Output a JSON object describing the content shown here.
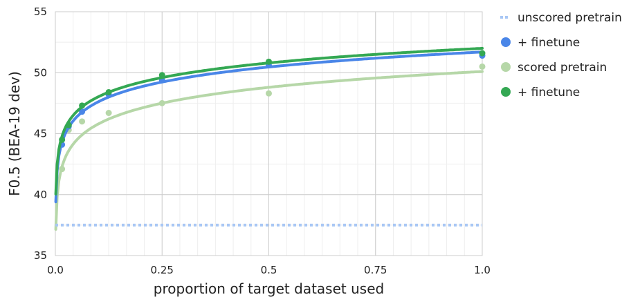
{
  "chart_data": {
    "type": "scatter",
    "title": "",
    "xlabel": "proportion of target dataset used",
    "ylabel": "F0.5 (BEA-19 dev)",
    "xlim": [
      0,
      1
    ],
    "ylim": [
      35,
      55
    ],
    "x_ticks": [
      0,
      0.25,
      0.5,
      0.75,
      1
    ],
    "x_tick_labels": [
      "0.0",
      "0.25",
      "0.5",
      "0.75",
      "1.0"
    ],
    "y_ticks": [
      35,
      40,
      45,
      50,
      55
    ],
    "y_tick_labels": [
      "35",
      "40",
      "45",
      "50",
      "55"
    ],
    "grid": true,
    "legend_position": "right",
    "series": [
      {
        "name": "unscored pretrain",
        "color": "#a8c7f5",
        "style": "dotted-line",
        "x": [
          0,
          1
        ],
        "y": [
          37.5,
          37.5
        ]
      },
      {
        "name": "+ finetune",
        "color": "#4a86e8",
        "style": "points-with-log-trendline",
        "x": [
          0.0156,
          0.03125,
          0.0625,
          0.125,
          0.25,
          0.5,
          1.0
        ],
        "y": [
          44.1,
          45.6,
          46.8,
          48.2,
          49.4,
          50.6,
          51.4
        ],
        "trend": [
          0,
          44.3,
          1.3,
          51.7
        ]
      },
      {
        "name": "scored pretrain",
        "color": "#b6d7a8",
        "style": "points-with-log-trendline",
        "x": [
          0.0156,
          0.03125,
          0.0625,
          0.125,
          0.25,
          0.5,
          1.0
        ],
        "y": [
          42.1,
          45.3,
          46.0,
          46.7,
          47.5,
          48.3,
          50.5
        ],
        "trend": [
          0,
          42.3,
          1.5,
          50.1
        ]
      },
      {
        "name": "+ finetune",
        "color": "#34a853",
        "style": "points-with-log-trendline",
        "x": [
          0.0156,
          0.03125,
          0.0625,
          0.125,
          0.25,
          0.5,
          1.0
        ],
        "y": [
          44.5,
          45.7,
          47.3,
          48.4,
          49.8,
          50.9,
          51.6
        ],
        "trend": [
          0,
          44.8,
          1.3,
          52.0
        ]
      }
    ]
  }
}
